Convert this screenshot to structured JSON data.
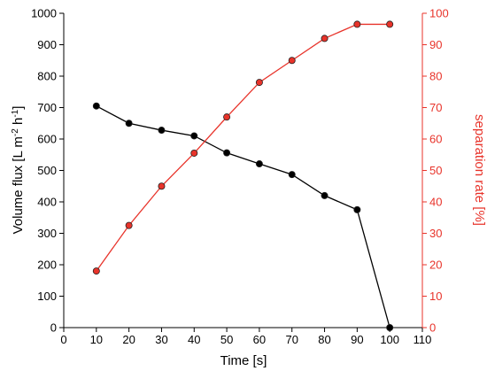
{
  "chart_data": {
    "type": "line",
    "x": [
      10,
      20,
      30,
      40,
      50,
      60,
      70,
      80,
      90,
      100
    ],
    "xlabel": "Time [s]",
    "xlim": [
      0,
      110
    ],
    "xticks": [
      0,
      10,
      20,
      30,
      40,
      50,
      60,
      70,
      80,
      90,
      100,
      110
    ],
    "ylabel_left": "Volume flux [L m^-2 h^-1]",
    "ylabel_left_parts": {
      "p1": "Volume flux [L m",
      "s1": "-2",
      "p2": " h",
      "s2": "-1",
      "p3": "]"
    },
    "ylim_left": [
      0,
      1000
    ],
    "yticks_left": [
      0,
      100,
      200,
      300,
      400,
      500,
      600,
      700,
      800,
      900,
      1000
    ],
    "ylabel_right": "separation rate [%]",
    "ylim_right": [
      0,
      100
    ],
    "yticks_right": [
      0,
      10,
      20,
      30,
      40,
      50,
      60,
      70,
      80,
      90,
      100
    ],
    "grid": false,
    "series": [
      {
        "axis": "left",
        "color": "#000000",
        "marker_fill": "#000000",
        "values": [
          705,
          650,
          628,
          610,
          556,
          521,
          487,
          420,
          375,
          0
        ]
      },
      {
        "axis": "right",
        "color": "#e8332a",
        "marker_fill": "#e8332a",
        "values": [
          18,
          32.5,
          45,
          55.5,
          67,
          78,
          85,
          92,
          96.5,
          96.5
        ]
      }
    ],
    "colors": {
      "left_axis": "#000000",
      "right_axis": "#e8332a"
    }
  }
}
